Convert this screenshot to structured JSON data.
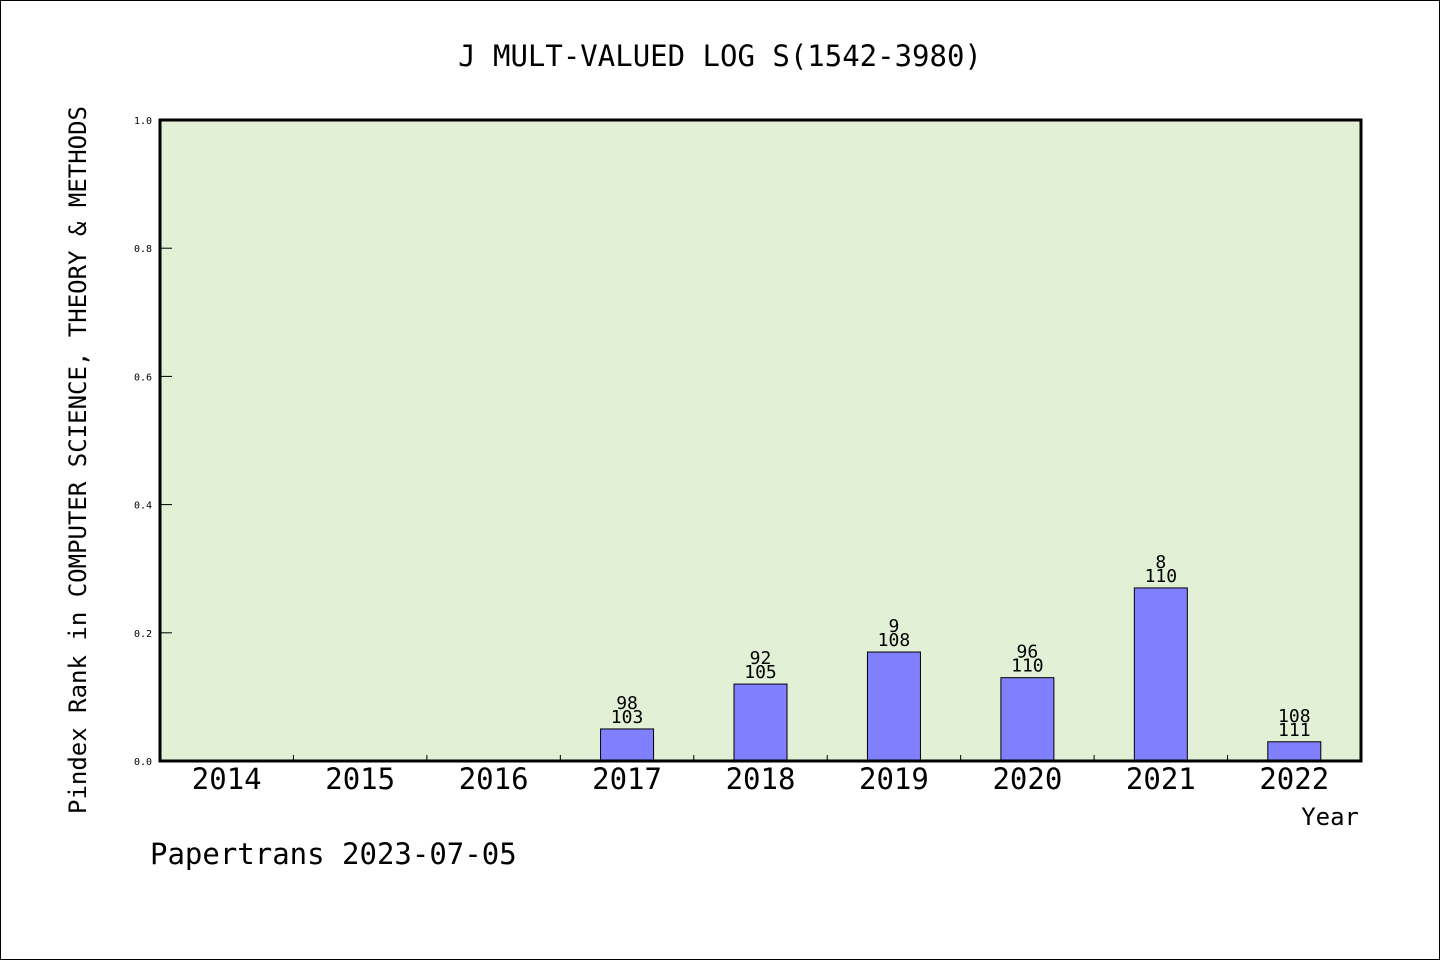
{
  "chart_data": {
    "type": "bar",
    "title": "J MULT-VALUED LOG S(1542-3980)",
    "xlabel": "Year",
    "ylabel": "Pindex Rank in COMPUTER SCIENCE, THEORY & METHODS",
    "categories": [
      "2014",
      "2015",
      "2016",
      "2017",
      "2018",
      "2019",
      "2020",
      "2021",
      "2022"
    ],
    "values": [
      null,
      null,
      null,
      0.05,
      0.12,
      0.17,
      0.13,
      0.27,
      0.03
    ],
    "bar_labels": [
      {
        "top": "",
        "bottom": ""
      },
      {
        "top": "",
        "bottom": ""
      },
      {
        "top": "",
        "bottom": ""
      },
      {
        "top": "98",
        "bottom": "103"
      },
      {
        "top": "92",
        "bottom": "105"
      },
      {
        "top": "9",
        "bottom": "108"
      },
      {
        "top": "96",
        "bottom": "110"
      },
      {
        "top": "8",
        "bottom": "110"
      },
      {
        "top": "108",
        "bottom": "111"
      }
    ],
    "ylim": [
      0,
      1.0
    ],
    "yticks": [
      "0.0",
      "0.2",
      "0.4",
      "0.6",
      "0.8",
      "1.0"
    ],
    "colors": {
      "plot_bg": "#e2f0d6",
      "bar": "#8080ff",
      "frame": "#000000"
    }
  },
  "footer": "Papertrans 2023-07-05"
}
